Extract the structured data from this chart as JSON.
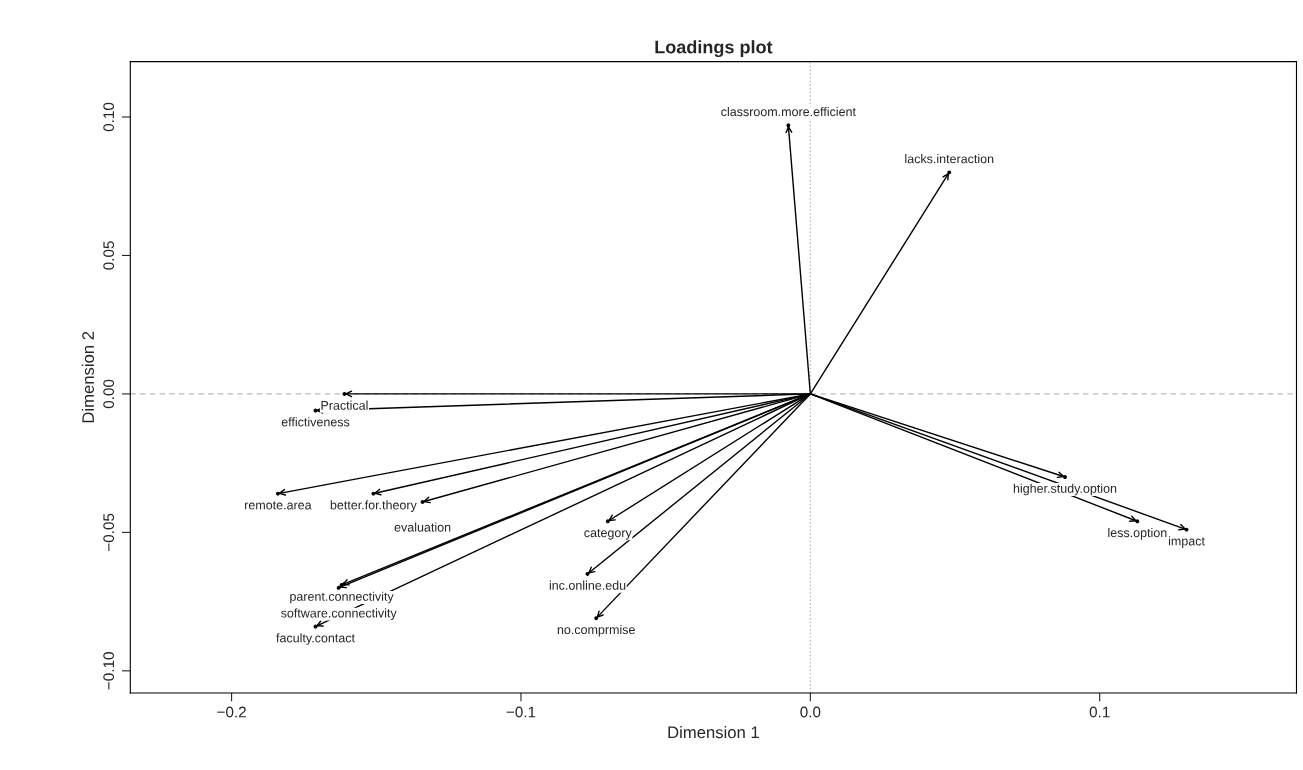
{
  "chart_data": {
    "type": "scatter",
    "title": "Loadings plot",
    "xlabel": "Dimension 1",
    "ylabel": "Dimension 2",
    "x": [
      -0.0076,
      0.048,
      -0.161,
      -0.171,
      -0.184,
      -0.151,
      -0.134,
      -0.07,
      -0.077,
      -0.074,
      -0.162,
      -0.163,
      -0.171,
      0.088,
      0.113,
      0.13
    ],
    "series": [
      {
        "color": "#000000",
        "values": [
          0.097,
          0.08,
          0.0,
          -0.006,
          -0.036,
          -0.036,
          -0.039,
          -0.046,
          -0.065,
          -0.081,
          -0.069,
          -0.07,
          -0.084,
          -0.03,
          -0.046,
          -0.049
        ]
      }
    ],
    "annotations": [
      {
        "text": "classroom.more.efficient",
        "x": -0.0076,
        "y": 0.097
      },
      {
        "text": "lacks.interaction",
        "x": 0.048,
        "y": 0.08
      },
      {
        "text": "Practical",
        "x": -0.161,
        "y": 0.0
      },
      {
        "text": "effictiveness",
        "x": -0.171,
        "y": -0.006
      },
      {
        "text": "remote.area",
        "x": -0.184,
        "y": -0.036
      },
      {
        "text": "better.for.theory",
        "x": -0.151,
        "y": -0.036
      },
      {
        "text": "evaluation",
        "x": -0.134,
        "y": -0.039
      },
      {
        "text": "category",
        "x": -0.07,
        "y": -0.046
      },
      {
        "text": "inc.online.edu",
        "x": -0.077,
        "y": -0.065
      },
      {
        "text": "no.comprmise",
        "x": -0.074,
        "y": -0.081
      },
      {
        "text": "parent.connectivity",
        "x": -0.162,
        "y": -0.069
      },
      {
        "text": "software.connectivity",
        "x": -0.163,
        "y": -0.07
      },
      {
        "text": "faculty.contact",
        "x": -0.171,
        "y": -0.084
      },
      {
        "text": "higher.study.option",
        "x": 0.088,
        "y": -0.03
      },
      {
        "text": "less.option",
        "x": 0.113,
        "y": -0.046
      },
      {
        "text": "impact",
        "x": 0.13,
        "y": -0.049
      }
    ],
    "ref_lines": [
      {
        "axis": "x",
        "value": 0,
        "color": "#bbbbbb",
        "line_style": "dotted"
      },
      {
        "axis": "y",
        "value": 0,
        "color": "#bbbbbb",
        "line_style": "dashed"
      }
    ],
    "xlim": [
      -0.235,
      0.168
    ],
    "ylim": [
      -0.108,
      0.12
    ],
    "xticks": [
      {
        "value": -0.2,
        "label": "−0.2"
      },
      {
        "value": -0.1,
        "label": "−0.1"
      },
      {
        "value": 0.0,
        "label": "0.0"
      },
      {
        "value": 0.1,
        "label": "0.1"
      }
    ],
    "yticks": [
      {
        "value": -0.1,
        "label": "−0.10"
      },
      {
        "value": -0.05,
        "label": "−0.05"
      },
      {
        "value": 0.0,
        "label": "0.00"
      },
      {
        "value": 0.05,
        "label": "0.05"
      },
      {
        "value": 0.1,
        "label": "0.10"
      }
    ],
    "grid": false,
    "legend": false
  }
}
